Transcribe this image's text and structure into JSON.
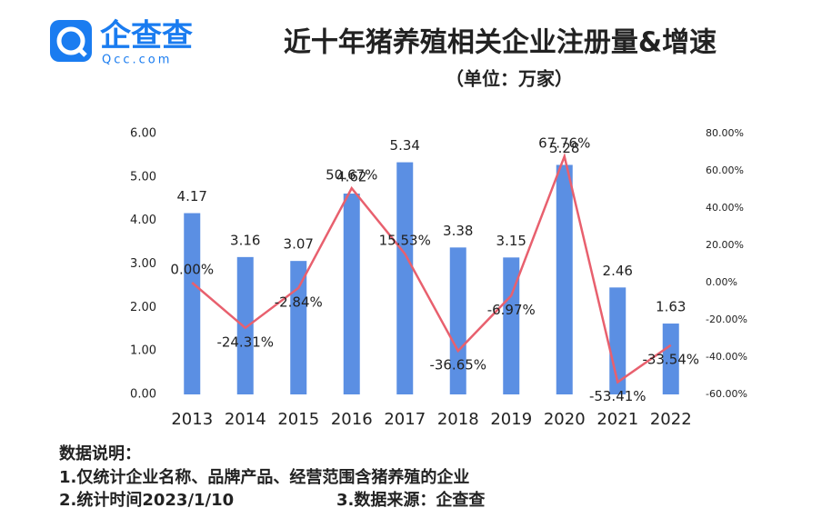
{
  "logo": {
    "name": "企查查",
    "domain": "Qcc.com"
  },
  "chart_data": {
    "type": "bar-line",
    "title": "近十年猪养殖相关企业注册量&增速",
    "subtitle": "（单位：万家）",
    "categories": [
      "2013",
      "2014",
      "2015",
      "2016",
      "2017",
      "2018",
      "2019",
      "2020",
      "2021",
      "2022"
    ],
    "series": [
      {
        "type": "bar",
        "color": "#5b8fe3",
        "values": [
          4.17,
          3.16,
          3.07,
          4.62,
          5.34,
          3.38,
          3.15,
          5.28,
          2.46,
          1.63
        ]
      },
      {
        "type": "line",
        "axis": "y2",
        "color": "#e8606e",
        "values": [
          0,
          -24.31,
          -2.84,
          50.67,
          15.53,
          -36.65,
          -6.97,
          67.76,
          -53.41,
          -33.54
        ],
        "value_labels": [
          "0.00%",
          "-24.31%",
          "-2.84%",
          "50.67%",
          "15.53%",
          "-36.65%",
          "-6.97%",
          "67.76%",
          "-53.41%",
          "-33.54%"
        ]
      }
    ],
    "ylim": [
      0,
      6
    ],
    "yticks": [
      {
        "value": 0,
        "label": "0.00"
      },
      {
        "value": 1,
        "label": "1.00"
      },
      {
        "value": 2,
        "label": "2.00"
      },
      {
        "value": 3,
        "label": "3.00"
      },
      {
        "value": 4,
        "label": "4.00"
      },
      {
        "value": 5,
        "label": "5.00"
      },
      {
        "value": 6,
        "label": "6.00"
      }
    ],
    "y2lim": [
      -60,
      80
    ],
    "y2ticks": [
      {
        "value": -60,
        "label": "-60.00%"
      },
      {
        "value": -40,
        "label": "-40.00%"
      },
      {
        "value": -20,
        "label": "-20.00%"
      },
      {
        "value": 0,
        "label": "0.00%"
      },
      {
        "value": 20,
        "label": "20.00%"
      },
      {
        "value": 40,
        "label": "40.00%"
      },
      {
        "value": 60,
        "label": "60.00%"
      },
      {
        "value": 80,
        "label": "80.00%"
      }
    ]
  },
  "notes": [
    "数据说明：",
    "1.仅统计企业名称、品牌产品、经营范围含猪养殖的企业",
    "2.统计时间2023/1/10",
    "3.数据来源：企查查"
  ]
}
